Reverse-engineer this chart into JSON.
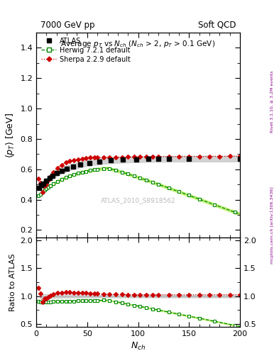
{
  "title_left": "7000 GeV pp",
  "title_right": "Soft QCD",
  "main_title": "Average $p_T$ vs $N_{ch}$ ($N_{ch}$ > 2, $p_T$ > 0.1 GeV)",
  "ylabel_main": "$\\langle p_T \\rangle$ [GeV]",
  "ylabel_ratio": "Ratio to ATLAS",
  "xlabel": "$N_{ch}$",
  "ylim_main": [
    0.15,
    1.5
  ],
  "ylim_ratio": [
    0.45,
    2.05
  ],
  "xlim": [
    0,
    200
  ],
  "watermark": "ATLAS_2010_S8918562",
  "right_label": "mcplots.cern.ch [arXiv:1306.3436]",
  "right_label2": "Rivet 3.1.10, ≥ 3.2M events",
  "atlas_color": "#000000",
  "herwig_color": "#008800",
  "sherpa_color": "#cc0000",
  "band_color_herwig": "#aaee44",
  "band_color_atlas": "#999999"
}
